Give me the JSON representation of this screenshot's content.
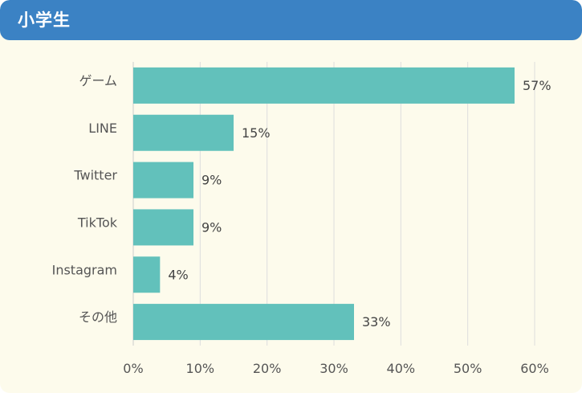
{
  "header": {
    "title": "小学生"
  },
  "chart_data": {
    "type": "bar",
    "orientation": "horizontal",
    "title": "小学生",
    "categories": [
      "ゲーム",
      "LINE",
      "Twitter",
      "TikTok",
      "Instagram",
      "その他"
    ],
    "values": [
      57,
      15,
      9,
      9,
      4,
      33
    ],
    "value_labels": [
      "57%",
      "15%",
      "9%",
      "9%",
      "4%",
      "33%"
    ],
    "xlim": [
      0,
      60
    ],
    "xticks": [
      0,
      10,
      20,
      30,
      40,
      50,
      60
    ],
    "xtick_labels": [
      "0%",
      "10%",
      "20%",
      "30%",
      "40%",
      "50%",
      "60%"
    ],
    "xlabel": "",
    "ylabel": "",
    "grid": "vertical",
    "legend": "none",
    "bar_color": "#62c1bb",
    "grid_color": "#dddddd"
  }
}
